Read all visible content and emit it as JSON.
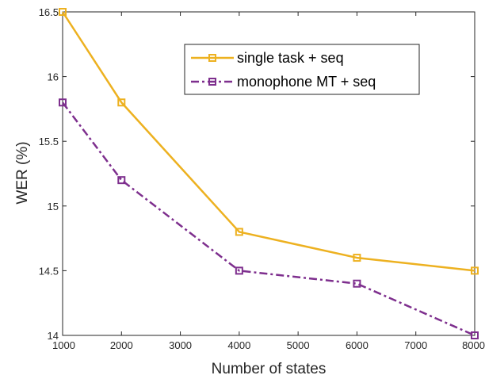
{
  "chart_data": {
    "type": "line",
    "title": "",
    "xlabel": "Number of states",
    "ylabel": "WER (%)",
    "xlim": [
      1000,
      8000
    ],
    "ylim": [
      14,
      16.5
    ],
    "xticks": [
      "1000",
      "2000",
      "3000",
      "4000",
      "5000",
      "6000",
      "7000",
      "8000"
    ],
    "yticks": [
      "14",
      "14.5",
      "15",
      "15.5",
      "16",
      "16.5"
    ],
    "grid": false,
    "legend_position": "top-right",
    "x": [
      1000,
      2000,
      4000,
      6000,
      8000
    ],
    "series": [
      {
        "name": "single task + seq",
        "color": "#EDB120",
        "line_style": "solid",
        "marker": "square",
        "values": [
          16.5,
          15.8,
          14.8,
          14.6,
          14.5
        ]
      },
      {
        "name": "monophone MT + seq",
        "color": "#7E2F8E",
        "line_style": "dash-dot",
        "marker": "square",
        "values": [
          15.8,
          15.2,
          14.5,
          14.4,
          14.0
        ]
      }
    ]
  }
}
